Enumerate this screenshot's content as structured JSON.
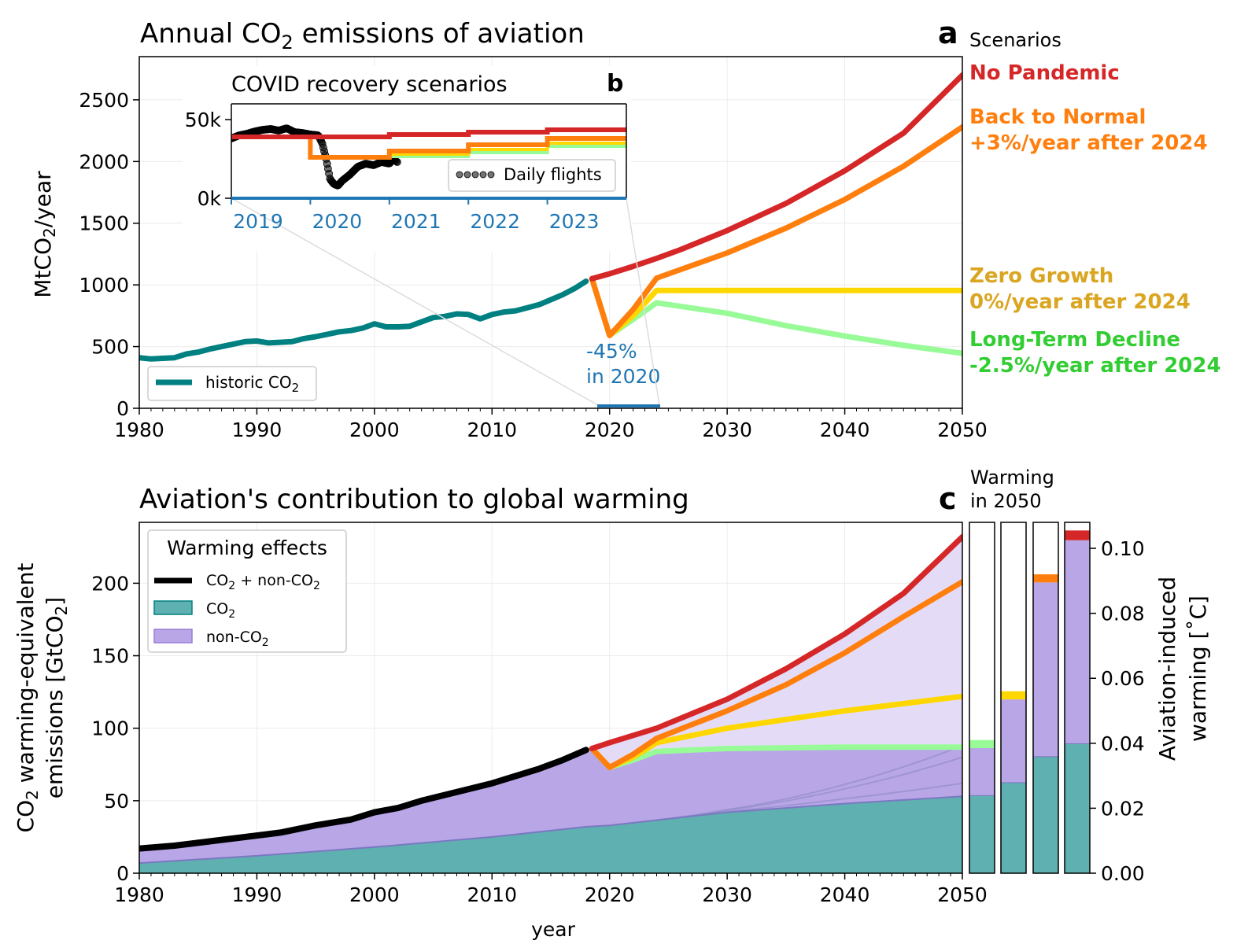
{
  "colors": {
    "historic": "#008080",
    "no_pandemic": "#d62728",
    "back_to_normal": "#ff7f0e",
    "zero_growth": "#ffd700",
    "zero_growth_label": "#daa520",
    "long_term_decline": "#98fb98",
    "long_term_decline_label": "#32cd32",
    "co2_fill": "#5fb0b0",
    "nonco2_fill": "#b9a6e6",
    "nonco2_light": "#e4dcf6",
    "inset_axis": "#1f77b4",
    "annotation": "#1f77b4"
  },
  "panel_a": {
    "title_pre": "Annual CO",
    "title_sub": "2",
    "title_post": " emissions of aviation",
    "letter": "a",
    "ylabel_pre": "MtCO",
    "ylabel_sub": "2",
    "ylabel_post": "/year",
    "scenarios_heading": "Scenarios",
    "legend_label_pre": "historic CO",
    "legend_label_sub": "2",
    "annotation_line1": "-45%",
    "annotation_line2": "in 2020"
  },
  "scenario_labels": {
    "no_pandemic": [
      "No Pandemic"
    ],
    "back_to_normal": [
      "Back to Normal",
      "+3%/year after 2024"
    ],
    "zero_growth": [
      "Zero Growth",
      "0%/year after 2024"
    ],
    "long_term_decline": [
      "Long-Term Decline",
      "-2.5%/year after 2024"
    ]
  },
  "panel_b": {
    "title": "COVID recovery scenarios",
    "letter": "b",
    "legend_label": "Daily flights",
    "yticks": [
      "0k",
      "50k"
    ],
    "xticks": [
      "2019",
      "2020",
      "2021",
      "2022",
      "2023"
    ]
  },
  "panel_c": {
    "title": "Aviation's contribution to global warming",
    "letter": "c",
    "warming_heading_line1": "Warming",
    "warming_heading_line2": "in 2050",
    "ylabel_line1_pre": "CO",
    "ylabel_line1_sub": "2",
    "ylabel_line1_post": " warming-equivalent",
    "ylabel_line2_pre": "emissions [GtCO",
    "ylabel_line2_sub": "2",
    "ylabel_line2_post": "]",
    "right_ylabel_line1": "Aviation-induced",
    "right_ylabel_line2": "warming [˚C]",
    "xlabel": "year",
    "legend_title": "Warming effects",
    "legend_combined_pre": "CO",
    "legend_combined_sub": "2",
    "legend_combined_post": " + non-CO",
    "legend_combined_sub2": "2",
    "legend_co2_pre": "CO",
    "legend_co2_sub": "2",
    "legend_nonco2_pre": "non-CO",
    "legend_nonco2_sub": "2"
  },
  "chart_data": [
    {
      "id": "a",
      "type": "line",
      "title": "Annual CO2 emissions of aviation",
      "ylabel": "MtCO2/year",
      "xlim": [
        1980,
        2050
      ],
      "ylim": [
        0,
        2850
      ],
      "xticks": [
        1980,
        1990,
        2000,
        2010,
        2020,
        2030,
        2040,
        2050
      ],
      "yticks": [
        0,
        500,
        1000,
        1500,
        2000,
        2500
      ],
      "grid": true,
      "legend": "bottom-left",
      "series": [
        {
          "key": "historic",
          "name": "historic CO2",
          "points": [
            [
              1980,
              410
            ],
            [
              1981,
              400
            ],
            [
              1982,
              405
            ],
            [
              1983,
              410
            ],
            [
              1984,
              440
            ],
            [
              1985,
              455
            ],
            [
              1986,
              480
            ],
            [
              1987,
              500
            ],
            [
              1988,
              520
            ],
            [
              1989,
              540
            ],
            [
              1990,
              545
            ],
            [
              1991,
              530
            ],
            [
              1992,
              535
            ],
            [
              1993,
              540
            ],
            [
              1994,
              565
            ],
            [
              1995,
              580
            ],
            [
              1996,
              600
            ],
            [
              1997,
              620
            ],
            [
              1998,
              630
            ],
            [
              1999,
              650
            ],
            [
              2000,
              685
            ],
            [
              2001,
              660
            ],
            [
              2002,
              660
            ],
            [
              2003,
              665
            ],
            [
              2004,
              700
            ],
            [
              2005,
              735
            ],
            [
              2006,
              745
            ],
            [
              2007,
              765
            ],
            [
              2008,
              760
            ],
            [
              2009,
              725
            ],
            [
              2010,
              760
            ],
            [
              2011,
              780
            ],
            [
              2012,
              790
            ],
            [
              2013,
              815
            ],
            [
              2014,
              840
            ],
            [
              2015,
              880
            ],
            [
              2016,
              920
            ],
            [
              2017,
              970
            ],
            [
              2018,
              1030
            ]
          ]
        },
        {
          "key": "long_term_decline",
          "points": [
            [
              2018.5,
              1050
            ],
            [
              2020,
              590
            ],
            [
              2022,
              720
            ],
            [
              2024,
              855
            ],
            [
              2030,
              770
            ],
            [
              2035,
              670
            ],
            [
              2040,
              585
            ],
            [
              2045,
              510
            ],
            [
              2050,
              445
            ]
          ]
        },
        {
          "key": "zero_growth",
          "points": [
            [
              2018.5,
              1050
            ],
            [
              2020,
              590
            ],
            [
              2022,
              750
            ],
            [
              2024,
              955
            ],
            [
              2050,
              955
            ]
          ]
        },
        {
          "key": "back_to_normal",
          "points": [
            [
              2018.5,
              1050
            ],
            [
              2020,
              590
            ],
            [
              2022,
              800
            ],
            [
              2024,
              1055
            ],
            [
              2030,
              1259
            ],
            [
              2035,
              1460
            ],
            [
              2040,
              1692
            ],
            [
              2045,
              1962
            ],
            [
              2050,
              2280
            ]
          ]
        },
        {
          "key": "no_pandemic",
          "points": [
            [
              2018.5,
              1050
            ],
            [
              2020,
              1090
            ],
            [
              2022,
              1150
            ],
            [
              2024,
              1215
            ],
            [
              2026,
              1285
            ],
            [
              2030,
              1440
            ],
            [
              2035,
              1660
            ],
            [
              2040,
              1925
            ],
            [
              2045,
              2230
            ],
            [
              2050,
              2700
            ]
          ]
        }
      ]
    },
    {
      "id": "b",
      "type": "line",
      "title": "COVID recovery scenarios",
      "ylabel": "",
      "xlim": [
        2019,
        2024
      ],
      "ylim": [
        0,
        60000
      ],
      "yticks": [
        0,
        50000
      ],
      "xticks": [
        2019,
        2020,
        2021,
        2022,
        2023
      ],
      "legend": "bottom-right",
      "series": [
        {
          "key": "no_pandemic",
          "points": [
            [
              2019,
              39000
            ],
            [
              2021,
              39000
            ],
            [
              2021,
              40500
            ],
            [
              2022,
              40500
            ],
            [
              2022,
              42000
            ],
            [
              2023,
              42000
            ],
            [
              2023,
              43500
            ],
            [
              2024,
              43500
            ]
          ]
        },
        {
          "key": "back_to_normal",
          "points": [
            [
              2019,
              39000
            ],
            [
              2020,
              39000
            ],
            [
              2020,
              26000
            ],
            [
              2021,
              26000
            ],
            [
              2021,
              30000
            ],
            [
              2022,
              30000
            ],
            [
              2022,
              34000
            ],
            [
              2023,
              34000
            ],
            [
              2023,
              38000
            ],
            [
              2024,
              38000
            ]
          ]
        },
        {
          "key": "zero_growth",
          "points": [
            [
              2021,
              28000
            ],
            [
              2022,
              28000
            ],
            [
              2022,
              31000
            ],
            [
              2023,
              31000
            ],
            [
              2023,
              35000
            ],
            [
              2024,
              35000
            ]
          ]
        },
        {
          "key": "long_term_decline",
          "points": [
            [
              2021,
              26500
            ],
            [
              2022,
              26500
            ],
            [
              2022,
              29000
            ],
            [
              2023,
              29000
            ],
            [
              2023,
              33000
            ],
            [
              2024,
              33000
            ]
          ]
        },
        {
          "key": "daily_flights",
          "name": "Daily flights",
          "type": "scatter",
          "points": [
            [
              2019.0,
              38000
            ],
            [
              2019.1,
              40000
            ],
            [
              2019.2,
              41000
            ],
            [
              2019.3,
              42500
            ],
            [
              2019.4,
              43500
            ],
            [
              2019.5,
              44000
            ],
            [
              2019.6,
              43000
            ],
            [
              2019.7,
              44500
            ],
            [
              2019.8,
              42000
            ],
            [
              2019.9,
              41500
            ],
            [
              2020.0,
              40500
            ],
            [
              2020.1,
              40000
            ],
            [
              2020.15,
              35000
            ],
            [
              2020.2,
              25000
            ],
            [
              2020.25,
              12000
            ],
            [
              2020.3,
              9000
            ],
            [
              2020.35,
              8000
            ],
            [
              2020.4,
              11000
            ],
            [
              2020.5,
              15000
            ],
            [
              2020.6,
              20000
            ],
            [
              2020.7,
              22000
            ],
            [
              2020.8,
              21000
            ],
            [
              2020.9,
              23000
            ],
            [
              2021.0,
              22000
            ],
            [
              2021.05,
              25000
            ],
            [
              2021.1,
              23000
            ]
          ]
        }
      ]
    },
    {
      "id": "c",
      "type": "area",
      "title": "Aviation's contribution to global warming",
      "xlabel": "year",
      "ylabel": "CO2 warming-equivalent emissions [GtCO2]",
      "xlim": [
        1980,
        2050
      ],
      "ylim": [
        0,
        242
      ],
      "xticks": [
        1980,
        1990,
        2000,
        2010,
        2020,
        2030,
        2040,
        2050
      ],
      "yticks": [
        0,
        50,
        100,
        150,
        200
      ],
      "grid": true,
      "legend": "top-left",
      "series": [
        {
          "key": "combined",
          "name": "CO2 + non-CO2",
          "points": [
            [
              1980,
              17
            ],
            [
              1983,
              19
            ],
            [
              1986,
              22
            ],
            [
              1990,
              26
            ],
            [
              1992,
              28
            ],
            [
              1995,
              33
            ],
            [
              1998,
              37
            ],
            [
              2000,
              42
            ],
            [
              2002,
              45
            ],
            [
              2004,
              50
            ],
            [
              2006,
              54
            ],
            [
              2008,
              58
            ],
            [
              2010,
              62
            ],
            [
              2012,
              67
            ],
            [
              2014,
              72
            ],
            [
              2016,
              78
            ],
            [
              2018,
              85
            ]
          ]
        },
        {
          "key": "co2",
          "name": "CO2",
          "points": [
            [
              1980,
              7
            ],
            [
              1990,
              12
            ],
            [
              2000,
              18
            ],
            [
              2010,
              25
            ],
            [
              2018,
              32
            ],
            [
              2020,
              33
            ],
            [
              2030,
              42
            ],
            [
              2040,
              48
            ],
            [
              2050,
              53
            ]
          ]
        },
        {
          "key": "long_term_decline",
          "points": [
            [
              2018.5,
              86
            ],
            [
              2020,
              73
            ],
            [
              2022,
              78
            ],
            [
              2024,
              84
            ],
            [
              2030,
              86
            ],
            [
              2040,
              87
            ],
            [
              2050,
              87
            ]
          ]
        },
        {
          "key": "zero_growth",
          "points": [
            [
              2018.5,
              86
            ],
            [
              2020,
              73
            ],
            [
              2022,
              80
            ],
            [
              2024,
              90
            ],
            [
              2030,
              100
            ],
            [
              2040,
              112
            ],
            [
              2050,
              122
            ]
          ]
        },
        {
          "key": "back_to_normal",
          "points": [
            [
              2018.5,
              86
            ],
            [
              2020,
              73
            ],
            [
              2022,
              82
            ],
            [
              2024,
              93
            ],
            [
              2030,
              112
            ],
            [
              2035,
              130
            ],
            [
              2040,
              152
            ],
            [
              2045,
              177
            ],
            [
              2050,
              201
            ]
          ]
        },
        {
          "key": "no_pandemic",
          "points": [
            [
              2018.5,
              86
            ],
            [
              2020,
              90
            ],
            [
              2024,
              100
            ],
            [
              2030,
              120
            ],
            [
              2035,
              141
            ],
            [
              2040,
              165
            ],
            [
              2045,
              193
            ],
            [
              2050,
              232
            ]
          ]
        }
      ]
    },
    {
      "id": "c-bars",
      "type": "bar",
      "title": "Warming in 2050",
      "ylabel": "Aviation-induced warming [˚C]",
      "ylim": [
        0,
        0.108
      ],
      "yticks": [
        0.0,
        0.02,
        0.04,
        0.06,
        0.08,
        0.1
      ],
      "categories": [
        "long_term_decline",
        "zero_growth",
        "back_to_normal",
        "no_pandemic"
      ],
      "series": [
        {
          "name": "CO2",
          "values": [
            0.024,
            0.028,
            0.036,
            0.04
          ]
        },
        {
          "name": "non-CO2",
          "values": [
            0.0145,
            0.0255,
            0.0535,
            0.0625
          ]
        },
        {
          "name": "scenario",
          "values": [
            0.0025,
            0.0025,
            0.0025,
            0.003
          ]
        }
      ]
    }
  ]
}
